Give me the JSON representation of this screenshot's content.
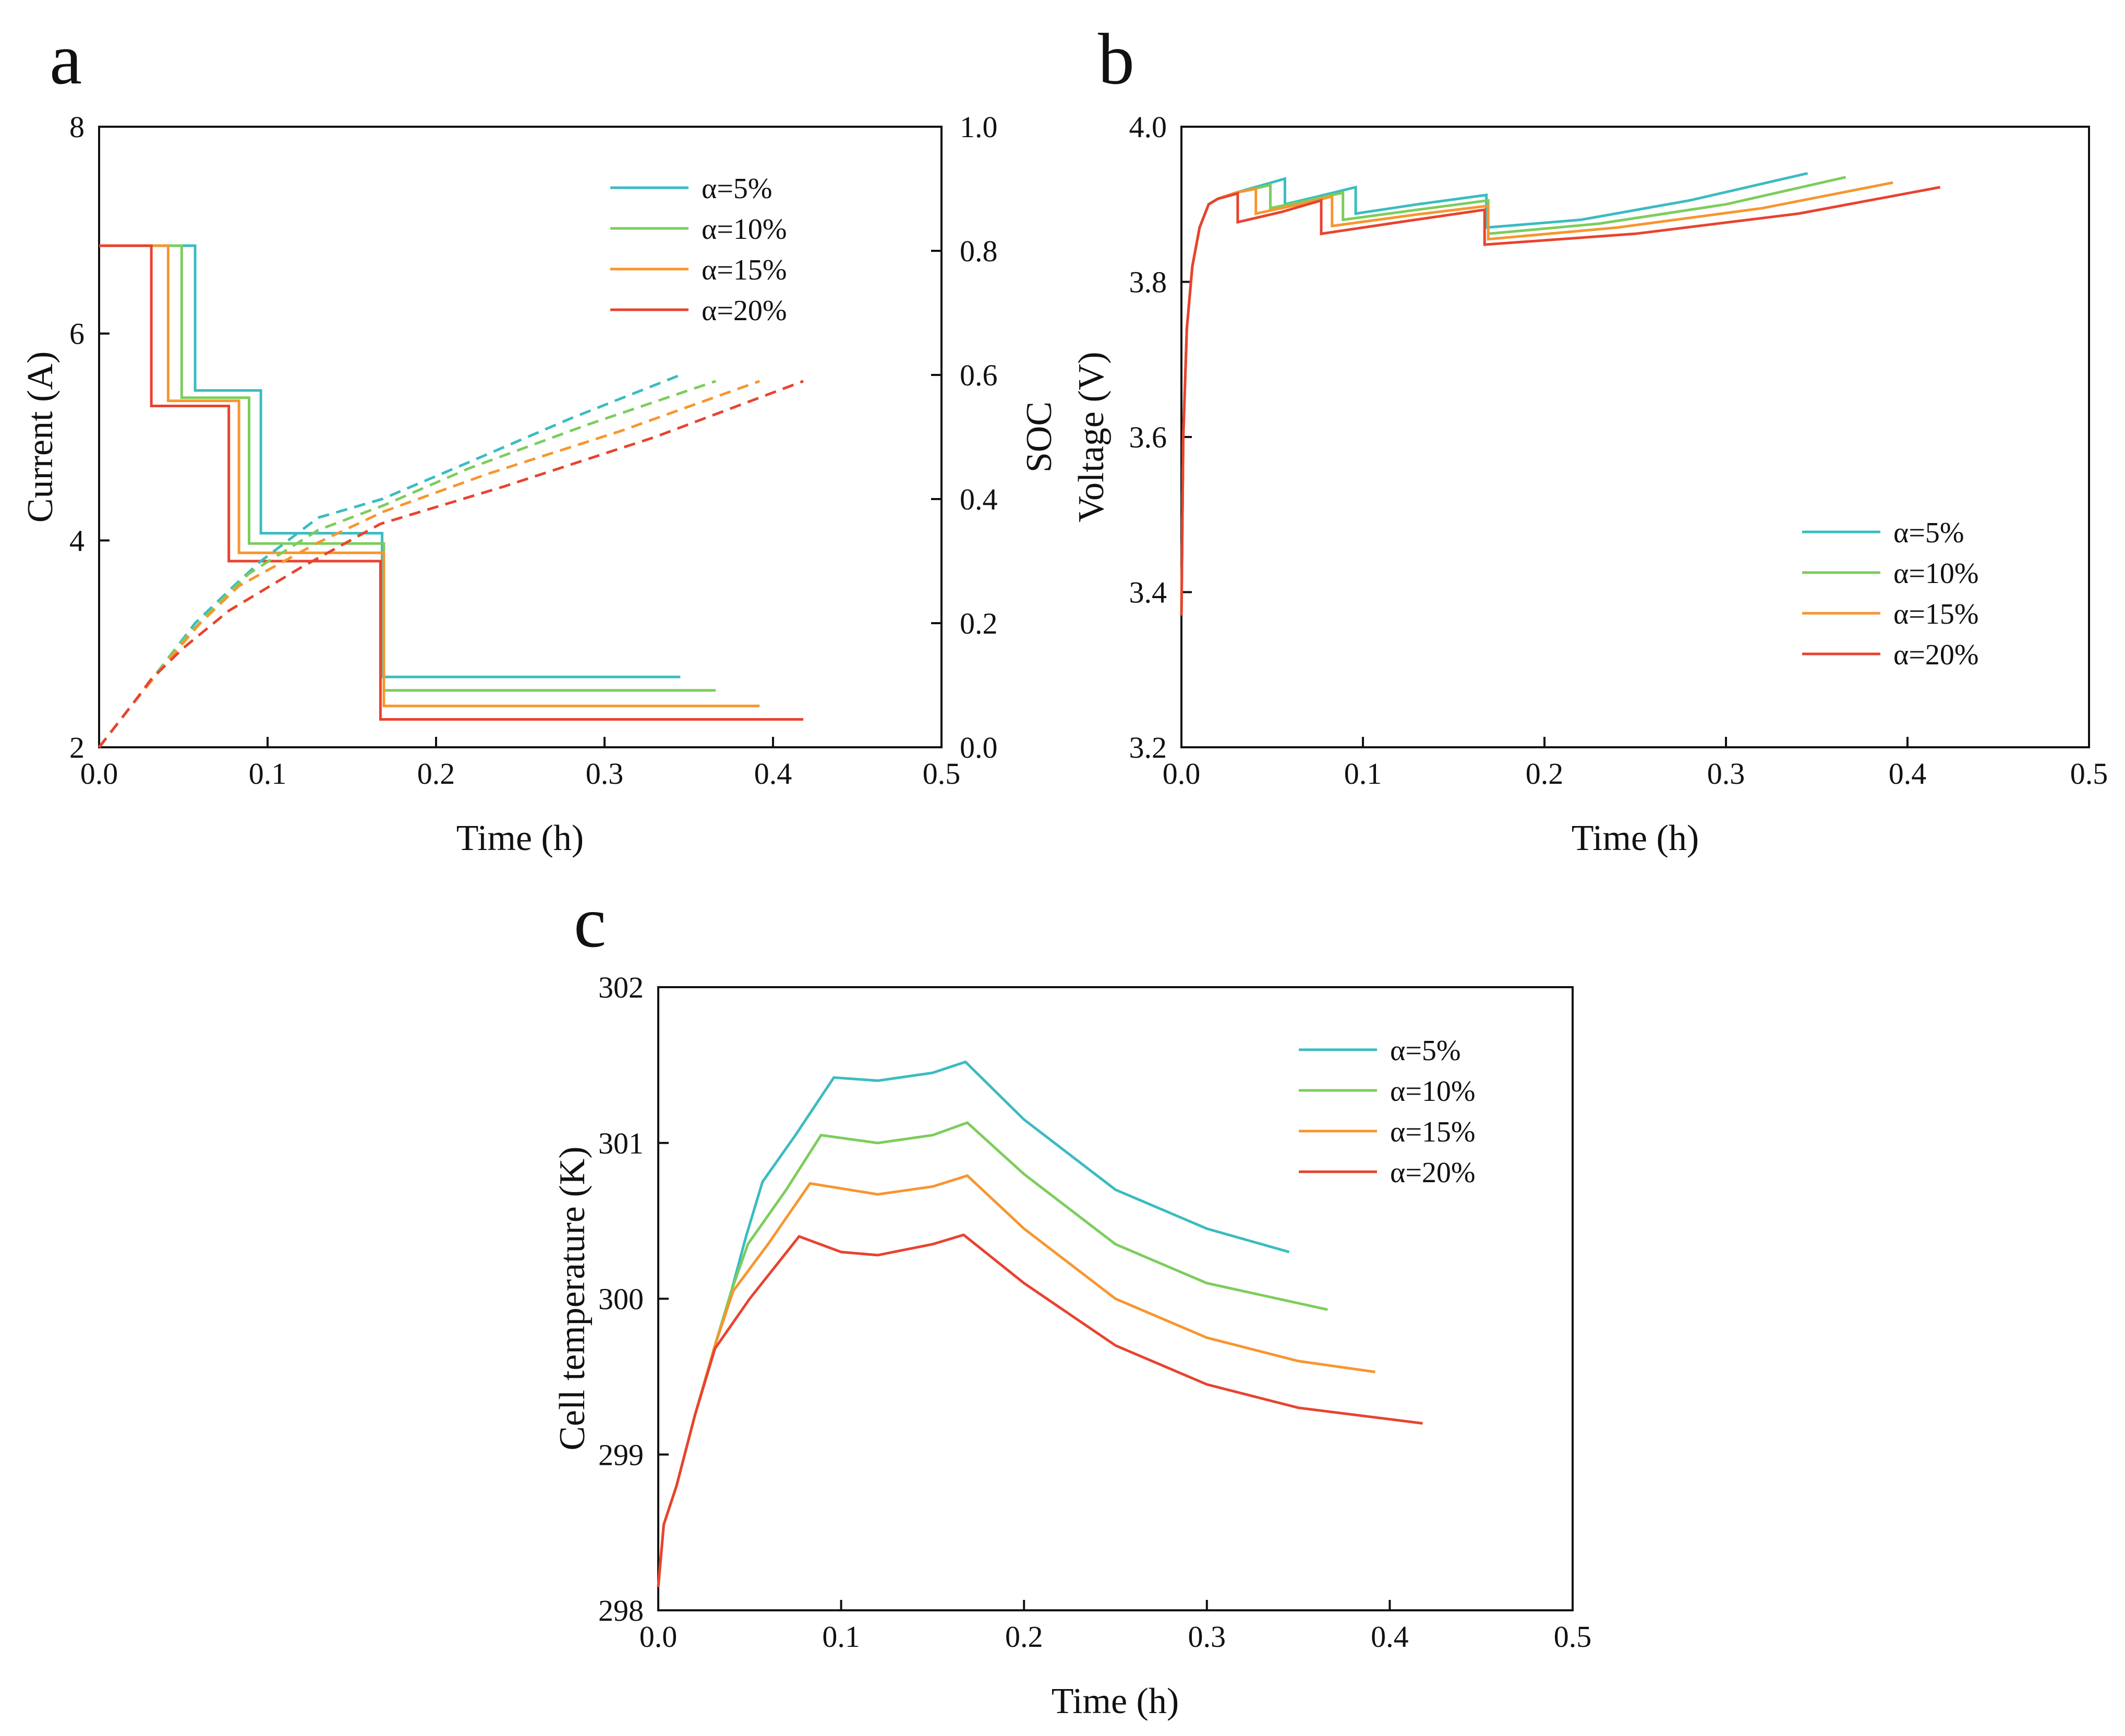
{
  "figure": {
    "panels": [
      "a",
      "b",
      "c"
    ]
  },
  "colors": {
    "a5": "#3bbcc0",
    "a10": "#7ccd5c",
    "a15": "#f7962f",
    "a20": "#e8432f",
    "axis": "#111111"
  },
  "legend_labels": [
    "α=5%",
    "α=10%",
    "α=15%",
    "α=20%"
  ],
  "chart_data": [
    {
      "panel": "a",
      "type": "line",
      "title": "",
      "xlabel": "Time (h)",
      "ylabel": "Current (A)",
      "y2label": "SOC",
      "xlim": [
        0,
        0.5
      ],
      "ylim": [
        2,
        8
      ],
      "y2lim": [
        0,
        1.0
      ],
      "xticks": [
        "0.0",
        "0.1",
        "0.2",
        "0.3",
        "0.4",
        "0.5"
      ],
      "yticks": [
        "2",
        "4",
        "6",
        "8"
      ],
      "y2ticks": [
        "0.0",
        "0.2",
        "0.4",
        "0.6",
        "0.8",
        "1.0"
      ],
      "legend_position": "top-right",
      "series": [
        {
          "name": "α=5%",
          "color_key": "a5",
          "kind": "current",
          "x": [
            0,
            0.057,
            0.057,
            0.096,
            0.096,
            0.168,
            0.168,
            0.345
          ],
          "y": [
            6.85,
            6.85,
            5.45,
            5.45,
            4.07,
            4.07,
            2.68,
            2.68
          ]
        },
        {
          "name": "α=10%",
          "color_key": "a10",
          "kind": "current",
          "x": [
            0,
            0.049,
            0.049,
            0.089,
            0.089,
            0.169,
            0.169,
            0.366
          ],
          "y": [
            6.85,
            6.85,
            5.38,
            5.38,
            3.97,
            3.97,
            2.55,
            2.55
          ]
        },
        {
          "name": "α=15%",
          "color_key": "a15",
          "kind": "current",
          "x": [
            0,
            0.041,
            0.041,
            0.083,
            0.083,
            0.169,
            0.169,
            0.392
          ],
          "y": [
            6.85,
            6.85,
            5.35,
            5.35,
            3.88,
            3.88,
            2.4,
            2.4
          ]
        },
        {
          "name": "α=20%",
          "color_key": "a20",
          "kind": "current",
          "x": [
            0,
            0.031,
            0.031,
            0.077,
            0.077,
            0.167,
            0.167,
            0.418
          ],
          "y": [
            6.85,
            6.85,
            5.3,
            5.3,
            3.8,
            3.8,
            2.27,
            2.27
          ]
        },
        {
          "name": "SOC α=5%",
          "color_key": "a5",
          "kind": "soc",
          "x": [
            0,
            0.02,
            0.04,
            0.057,
            0.08,
            0.096,
            0.13,
            0.168,
            0.22,
            0.28,
            0.345
          ],
          "y": [
            0,
            0.07,
            0.14,
            0.2,
            0.26,
            0.3,
            0.37,
            0.4,
            0.46,
            0.53,
            0.6
          ]
        },
        {
          "name": "SOC α=10%",
          "color_key": "a10",
          "kind": "soc",
          "x": [
            0,
            0.02,
            0.049,
            0.07,
            0.089,
            0.13,
            0.169,
            0.22,
            0.29,
            0.366
          ],
          "y": [
            0,
            0.07,
            0.17,
            0.23,
            0.28,
            0.35,
            0.39,
            0.45,
            0.52,
            0.59
          ]
        },
        {
          "name": "SOC α=15%",
          "color_key": "a15",
          "kind": "soc",
          "x": [
            0,
            0.02,
            0.041,
            0.06,
            0.083,
            0.13,
            0.169,
            0.23,
            0.31,
            0.392
          ],
          "y": [
            0,
            0.07,
            0.14,
            0.2,
            0.26,
            0.33,
            0.38,
            0.44,
            0.51,
            0.59
          ]
        },
        {
          "name": "SOC α=20%",
          "color_key": "a20",
          "kind": "soc",
          "x": [
            0,
            0.02,
            0.031,
            0.05,
            0.077,
            0.12,
            0.167,
            0.24,
            0.33,
            0.418
          ],
          "y": [
            0,
            0.07,
            0.11,
            0.16,
            0.22,
            0.29,
            0.36,
            0.42,
            0.5,
            0.59
          ]
        }
      ]
    },
    {
      "panel": "b",
      "type": "line",
      "title": "",
      "xlabel": "Time (h)",
      "ylabel": "Voltage (V)",
      "xlim": [
        0,
        0.5
      ],
      "ylim": [
        3.2,
        4.0
      ],
      "xticks": [
        "0.0",
        "0.1",
        "0.2",
        "0.3",
        "0.4",
        "0.5"
      ],
      "yticks": [
        "3.2",
        "3.4",
        "3.6",
        "3.8",
        "4.0"
      ],
      "legend_position": "bottom-right",
      "series": [
        {
          "name": "α=5%",
          "color_key": "a5",
          "x": [
            0,
            0.001,
            0.003,
            0.006,
            0.01,
            0.015,
            0.02,
            0.03,
            0.045,
            0.057,
            0.057,
            0.075,
            0.096,
            0.096,
            0.13,
            0.168,
            0.168,
            0.22,
            0.28,
            0.345
          ],
          "y": [
            3.37,
            3.6,
            3.74,
            3.82,
            3.87,
            3.9,
            3.907,
            3.915,
            3.925,
            3.933,
            3.9,
            3.91,
            3.922,
            3.888,
            3.9,
            3.912,
            3.87,
            3.88,
            3.905,
            3.94
          ]
        },
        {
          "name": "α=10%",
          "color_key": "a10",
          "x": [
            0,
            0.001,
            0.003,
            0.006,
            0.01,
            0.015,
            0.02,
            0.03,
            0.04,
            0.049,
            0.049,
            0.07,
            0.089,
            0.089,
            0.13,
            0.169,
            0.169,
            0.23,
            0.3,
            0.366
          ],
          "y": [
            3.37,
            3.6,
            3.74,
            3.82,
            3.87,
            3.9,
            3.907,
            3.915,
            3.92,
            3.925,
            3.895,
            3.905,
            3.915,
            3.88,
            3.893,
            3.905,
            3.862,
            3.875,
            3.9,
            3.935
          ]
        },
        {
          "name": "α=15%",
          "color_key": "a15",
          "x": [
            0,
            0.001,
            0.003,
            0.006,
            0.01,
            0.015,
            0.02,
            0.03,
            0.041,
            0.041,
            0.065,
            0.083,
            0.083,
            0.13,
            0.169,
            0.169,
            0.24,
            0.32,
            0.392
          ],
          "y": [
            3.37,
            3.6,
            3.74,
            3.82,
            3.87,
            3.9,
            3.907,
            3.915,
            3.92,
            3.888,
            3.9,
            3.91,
            3.872,
            3.887,
            3.898,
            3.855,
            3.87,
            3.895,
            3.928
          ]
        },
        {
          "name": "α=20%",
          "color_key": "a20",
          "x": [
            0,
            0.001,
            0.003,
            0.006,
            0.01,
            0.015,
            0.02,
            0.031,
            0.031,
            0.055,
            0.077,
            0.077,
            0.12,
            0.167,
            0.167,
            0.25,
            0.34,
            0.418
          ],
          "y": [
            3.37,
            3.6,
            3.74,
            3.82,
            3.87,
            3.9,
            3.907,
            3.914,
            3.877,
            3.89,
            3.905,
            3.862,
            3.877,
            3.893,
            3.848,
            3.862,
            3.888,
            3.922
          ]
        }
      ]
    },
    {
      "panel": "c",
      "type": "line",
      "title": "",
      "xlabel": "Time (h)",
      "ylabel": "Cell temperature (K)",
      "xlim": [
        0,
        0.5
      ],
      "ylim": [
        298,
        302
      ],
      "xticks": [
        "0.0",
        "0.1",
        "0.2",
        "0.3",
        "0.4",
        "0.5"
      ],
      "yticks": [
        "298",
        "299",
        "300",
        "301",
        "302"
      ],
      "legend_position": "top-right",
      "series": [
        {
          "name": "α=5%",
          "color_key": "a5",
          "x": [
            0,
            0.003,
            0.01,
            0.02,
            0.031,
            0.04,
            0.048,
            0.057,
            0.075,
            0.096,
            0.12,
            0.15,
            0.168,
            0.2,
            0.25,
            0.3,
            0.345
          ],
          "y": [
            298.15,
            298.55,
            298.8,
            299.25,
            299.7,
            300.05,
            300.4,
            300.75,
            301.05,
            301.42,
            301.4,
            301.45,
            301.52,
            301.15,
            300.7,
            300.45,
            300.3
          ]
        },
        {
          "name": "α=10%",
          "color_key": "a10",
          "x": [
            0,
            0.003,
            0.01,
            0.02,
            0.031,
            0.04,
            0.049,
            0.07,
            0.089,
            0.12,
            0.15,
            0.169,
            0.2,
            0.25,
            0.3,
            0.366
          ],
          "y": [
            298.15,
            298.55,
            298.8,
            299.25,
            299.7,
            300.05,
            300.35,
            300.7,
            301.05,
            301.0,
            301.05,
            301.13,
            300.8,
            300.35,
            300.1,
            299.93
          ]
        },
        {
          "name": "α=15%",
          "color_key": "a15",
          "x": [
            0,
            0.003,
            0.01,
            0.02,
            0.031,
            0.041,
            0.06,
            0.083,
            0.12,
            0.15,
            0.169,
            0.2,
            0.25,
            0.3,
            0.35,
            0.392
          ],
          "y": [
            298.15,
            298.55,
            298.8,
            299.25,
            299.7,
            300.05,
            300.35,
            300.74,
            300.67,
            300.72,
            300.79,
            300.45,
            300.0,
            299.75,
            299.6,
            299.53
          ]
        },
        {
          "name": "α=20%",
          "color_key": "a20",
          "x": [
            0,
            0.003,
            0.01,
            0.02,
            0.031,
            0.05,
            0.077,
            0.1,
            0.12,
            0.15,
            0.167,
            0.2,
            0.25,
            0.3,
            0.35,
            0.418
          ],
          "y": [
            298.15,
            298.55,
            298.8,
            299.25,
            299.68,
            300.0,
            300.4,
            300.3,
            300.28,
            300.35,
            300.41,
            300.1,
            299.7,
            299.45,
            299.3,
            299.2
          ]
        }
      ]
    }
  ]
}
